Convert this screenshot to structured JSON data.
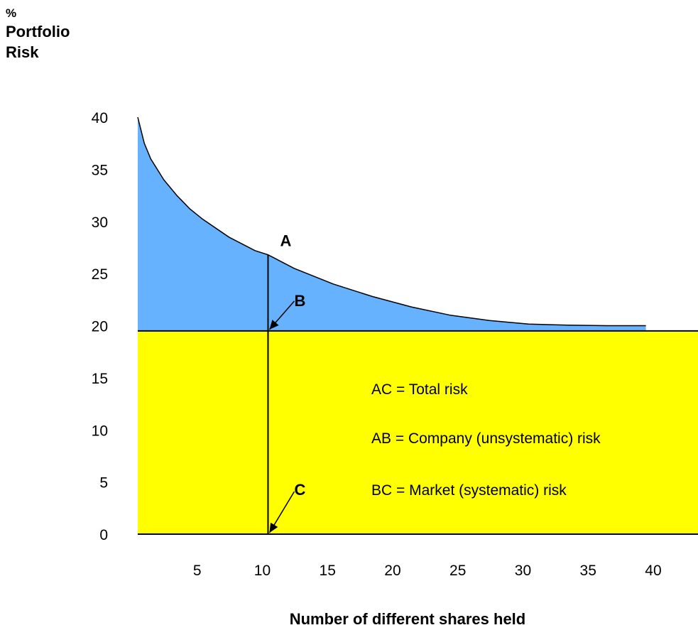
{
  "chart_data": {
    "type": "area",
    "ylabel_lines": [
      "%",
      "Portfolio",
      "Risk"
    ],
    "xlabel": "Number of different shares held",
    "xlim": [
      0,
      43
    ],
    "ylim": [
      0,
      40
    ],
    "x_ticks": [
      5,
      10,
      15,
      20,
      25,
      30,
      35,
      40
    ],
    "y_ticks": [
      0,
      5,
      10,
      15,
      20,
      25,
      30,
      35,
      40
    ],
    "series": [
      {
        "x": [
          0,
          0.5,
          1,
          2,
          3,
          4,
          5,
          7,
          9,
          10,
          12,
          15,
          18,
          21,
          24,
          27,
          30,
          33,
          36,
          39
        ],
        "values": [
          40,
          37.5,
          36,
          34,
          32.5,
          31.2,
          30.2,
          28.5,
          27.2,
          26.8,
          25.5,
          24.0,
          22.8,
          21.8,
          21.0,
          20.5,
          20.15,
          20.05,
          20.0,
          20.0
        ]
      }
    ],
    "market_risk_level": 19.5,
    "marker_x": 10,
    "points": [
      {
        "label": "A"
      },
      {
        "label": "B"
      },
      {
        "label": "C"
      }
    ],
    "annotations": [
      "AC = Total risk",
      "AB = Company (unsystematic) risk",
      "BC = Market (systematic) risk"
    ],
    "colors": {
      "unsystematic": "#66b2ff",
      "systematic": "#ffff00",
      "line": "#000000"
    }
  }
}
